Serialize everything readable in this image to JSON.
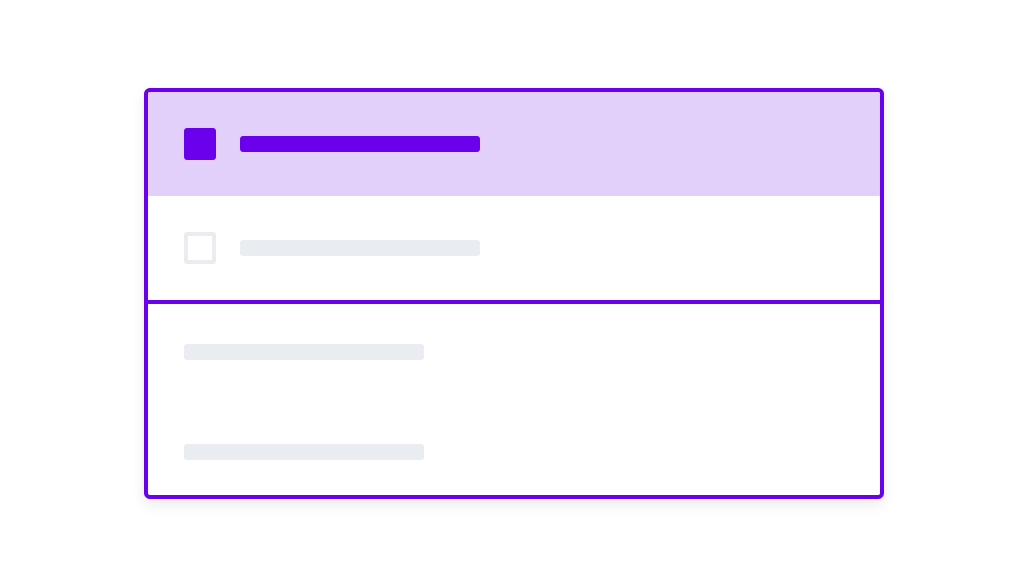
{
  "colors": {
    "accent": "#6a00ec",
    "selected_row_bg": "#e3d0fa",
    "placeholder": "#e9ecf0"
  },
  "list": {
    "items": [
      {
        "checked": true,
        "selected": true,
        "icon": "checkbox-checked-icon"
      },
      {
        "checked": false,
        "selected": false,
        "icon": "checkbox-empty-icon"
      }
    ]
  },
  "details": {
    "placeholder_lines": 2
  }
}
